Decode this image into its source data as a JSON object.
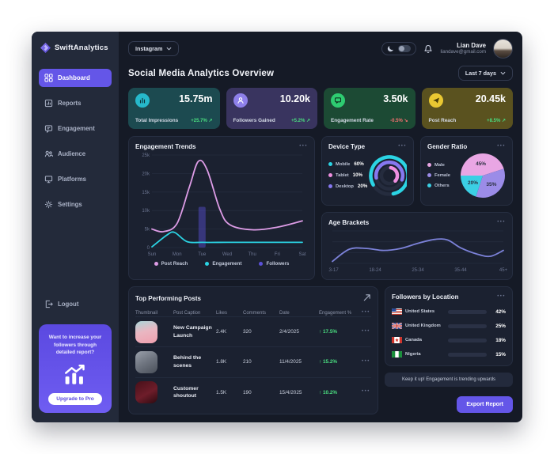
{
  "theme": {
    "accent": "#6456e8",
    "positive": "#4ade80",
    "negative": "#f87171",
    "sidebar_bg": "#232a3a",
    "panel_bg": "#1b2130"
  },
  "sidebar": {
    "logo_text": "SwiftAnalytics",
    "items": [
      {
        "label": "Dashboard",
        "active": true
      },
      {
        "label": "Reports",
        "active": false
      },
      {
        "label": "Engagement",
        "active": false
      },
      {
        "label": "Audience",
        "active": false
      },
      {
        "label": "Platforms",
        "active": false
      },
      {
        "label": "Settings",
        "active": false
      }
    ],
    "logout_label": "Logout",
    "promo": {
      "text": "Want to increase your followers through detailed report?",
      "cta": "Upgrade to Pro"
    }
  },
  "topbar": {
    "platform_selector": "Instagram",
    "user": {
      "name": "Lian Dave",
      "email": "liandave@gmail.com"
    }
  },
  "header": {
    "title": "Social Media Analytics Overview",
    "range_selector": "Last 7 days"
  },
  "kpis": [
    {
      "label": "Total Impressions",
      "value": "15.75m",
      "trend": "+25.7% ↗",
      "icon": "bar-chart"
    },
    {
      "label": "Followers Gained",
      "value": "10.20k",
      "trend": "+5.2% ↗",
      "icon": "user-plus"
    },
    {
      "label": "Engagement Rate",
      "value": "3.50k",
      "trend": "-0.5% ↘",
      "icon": "chat-bubble"
    },
    {
      "label": "Post Reach",
      "value": "20.45k",
      "trend": "+8.5% ↗",
      "icon": "paper-plane"
    }
  ],
  "panels": {
    "engagement_trends": {
      "title": "Engagement Trends"
    },
    "device_type": {
      "title": "Device Type",
      "legend": [
        {
          "label": "Mobile",
          "value": "60%"
        },
        {
          "label": "Tablet",
          "value": "10%"
        },
        {
          "label": "Desktop",
          "value": "20%"
        }
      ]
    },
    "gender_ratio": {
      "title": "Gender Ratio",
      "legend": [
        {
          "label": "Male"
        },
        {
          "label": "Female"
        },
        {
          "label": "Others"
        }
      ]
    },
    "age_brackets": {
      "title": "Age Brackets"
    },
    "top_posts": {
      "title": "Top Performing Posts",
      "columns": [
        "Thumbnail",
        "Post Caption",
        "Likes",
        "Comments",
        "Date",
        "Engagement %"
      ],
      "rows": [
        {
          "caption": "New Campaign Launch",
          "likes": "2.4K",
          "comments": "320",
          "date": "2/4/2025",
          "engagement": "↑ 17.5%"
        },
        {
          "caption": "Behind the scenes",
          "likes": "1.8K",
          "comments": "210",
          "date": "11/4/2025",
          "engagement": "↑ 15.2%"
        },
        {
          "caption": "Customer shoutout",
          "likes": "1.5K",
          "comments": "190",
          "date": "15/4/2025",
          "engagement": "↑ 10.2%"
        }
      ]
    },
    "followers_location": {
      "title": "Followers by Location",
      "rows": [
        {
          "country": "United States",
          "pct": "42%"
        },
        {
          "country": "United Kingdom",
          "pct": "25%"
        },
        {
          "country": "Canada",
          "pct": "18%"
        },
        {
          "country": "Nigeria",
          "pct": "15%"
        }
      ]
    },
    "insight": "Keep it up! Engagement is trending upwards",
    "export_label": "Export Report"
  },
  "chart_data": [
    {
      "id": "trends",
      "type": "line+bar",
      "title": "Engagement Trends",
      "x_labels": [
        "Sun",
        "Mon",
        "Tue",
        "Wed",
        "Thu",
        "Fri",
        "Sat"
      ],
      "y_ticks": [
        "0",
        "5k",
        "10k",
        "15k",
        "20k",
        "25k"
      ],
      "ylim": [
        0,
        25000
      ],
      "grid": true,
      "legend_position": "bottom",
      "series": [
        {
          "name": "Post Reach",
          "color": "#dd9ce6",
          "points": [
            [
              0,
              5000
            ],
            [
              0.45,
              4300
            ],
            [
              1,
              6500
            ],
            [
              1.5,
              16500
            ],
            [
              1.85,
              23300
            ],
            [
              2.2,
              21000
            ],
            [
              2.7,
              10500
            ],
            [
              3.1,
              6200
            ],
            [
              4,
              4800
            ],
            [
              5,
              5500
            ],
            [
              6,
              7200
            ]
          ]
        },
        {
          "name": "Engagement",
          "color": "#2bd4e4",
          "points": [
            [
              0,
              200
            ],
            [
              0.6,
              3400
            ],
            [
              0.9,
              4100
            ],
            [
              1.4,
              1600
            ],
            [
              2,
              1400
            ],
            [
              3,
              1400
            ],
            [
              4,
              1400
            ],
            [
              5,
              1400
            ],
            [
              6,
              1400
            ]
          ]
        }
      ],
      "bars": [
        {
          "name": "Followers",
          "color": "#5a50d8",
          "x": 2,
          "value": 11000
        }
      ],
      "legend": [
        {
          "label": "Post Reach",
          "color": "#dd9ce6"
        },
        {
          "label": "Engagement",
          "color": "#2bd4e4"
        },
        {
          "label": "Followers",
          "color": "#5a50d8"
        }
      ]
    },
    {
      "id": "device",
      "type": "concentric-donut",
      "title": "Device Type",
      "slices": [
        {
          "label": "Mobile",
          "value": 60,
          "color": "#2bd4e4"
        },
        {
          "label": "Tablet",
          "value": 10,
          "color": "#ef8fe0"
        },
        {
          "label": "Desktop",
          "value": 20,
          "color": "#8678f0"
        }
      ],
      "rings": [
        {
          "slice": 0,
          "start": 150,
          "arc_fraction": 0.8
        },
        {
          "slice": 2,
          "start": 170,
          "arc_fraction": 0.58
        },
        {
          "slice": 1,
          "start": -80,
          "arc_fraction": 0.34
        }
      ]
    },
    {
      "id": "gender",
      "type": "pie",
      "title": "Gender Ratio",
      "start_angle": 180,
      "slices": [
        {
          "label": "Male",
          "value": 45,
          "color": "#e9a6e4"
        },
        {
          "label": "Female",
          "value": 35,
          "color": "#9b8ce8"
        },
        {
          "label": "Others",
          "value": 20,
          "color": "#3bcfe4"
        }
      ]
    },
    {
      "id": "age",
      "type": "line",
      "title": "Age Brackets",
      "x_labels": [
        "13-17",
        "18-24",
        "25-34",
        "35-44",
        "45+"
      ],
      "ylim": [
        0,
        100
      ],
      "grid": true,
      "series": [
        {
          "name": "Age distribution",
          "color": "#7c82d9",
          "points": [
            [
              0,
              6
            ],
            [
              0.4,
              44
            ],
            [
              0.8,
              46
            ],
            [
              1.2,
              40
            ],
            [
              1.6,
              46
            ],
            [
              2,
              62
            ],
            [
              2.4,
              74
            ],
            [
              2.7,
              72
            ],
            [
              3,
              48
            ],
            [
              3.4,
              28
            ],
            [
              3.7,
              22
            ],
            [
              4,
              40
            ]
          ]
        }
      ]
    },
    {
      "id": "locations",
      "type": "bar-h",
      "title": "Followers by Location",
      "xlim": [
        0,
        100
      ],
      "bars": [
        {
          "label": "United States",
          "value": 42,
          "color": "#8678f0"
        },
        {
          "label": "United Kingdom",
          "value": 25,
          "color": "#ef8fe0"
        },
        {
          "label": "Canada",
          "value": 18,
          "color": "#3bcfe4"
        },
        {
          "label": "Nigeria",
          "value": 15,
          "color": "#eac93c"
        }
      ]
    }
  ]
}
